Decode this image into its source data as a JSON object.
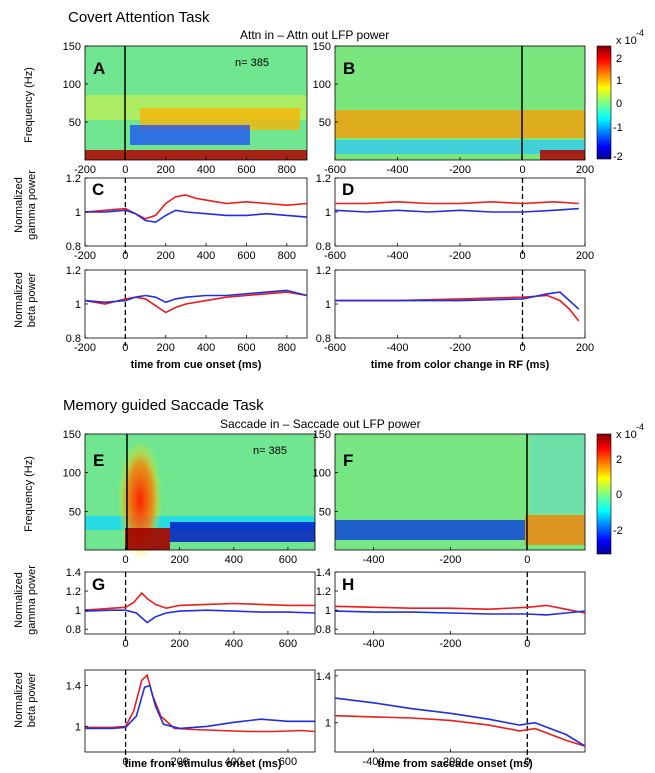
{
  "section1": {
    "title": "Covert Attention Task",
    "subtitle": "Attn in – Attn out LFP power",
    "n_label": "n= 385",
    "colorbar": {
      "label": "x 10",
      "exponent": "-4",
      "ticks": [
        "2",
        "1",
        "0",
        "-1",
        "-2"
      ]
    },
    "xlabel_left": "time from cue onset (ms)",
    "xlabel_right": "time from color change in RF (ms)",
    "ylabel_spec": "Frequency (Hz)",
    "ylabel_gamma": [
      "Normalized",
      "gamma power"
    ],
    "ylabel_beta": [
      "Normalized",
      "beta power"
    ]
  },
  "section2": {
    "title": "Memory guided Saccade Task",
    "subtitle": "Saccade in – Saccade out LFP power",
    "n_label": "n= 385",
    "colorbar": {
      "label": "x 10",
      "exponent": "-4",
      "ticks": [
        "2",
        "0",
        "-2"
      ]
    },
    "xlabel_left": "time from stimulus onset (ms)",
    "xlabel_right": "time from saccade onset (ms)",
    "ylabel_spec": "Frequency (Hz)",
    "ylabel_gamma": [
      "Normalized",
      "gamma power"
    ],
    "ylabel_beta": [
      "Normalized",
      "beta power"
    ]
  },
  "colors": {
    "red": "#ee1c1c",
    "blue": "#1f2fe0",
    "colormap": "jet"
  },
  "chart_data": [
    {
      "panel": "A",
      "type": "heatmap",
      "x_range": [
        -200,
        900
      ],
      "y_range": [
        0,
        150
      ],
      "xticks": [
        -200,
        0,
        200,
        400,
        600,
        800
      ],
      "yticks": [
        50,
        100,
        150
      ],
      "event_line_x": 0,
      "color_range": [
        -2,
        2
      ],
      "units": "x 10^-4"
    },
    {
      "panel": "B",
      "type": "heatmap",
      "x_range": [
        -600,
        200
      ],
      "y_range": [
        0,
        150
      ],
      "xticks": [
        -600,
        -400,
        -200,
        0,
        200
      ],
      "yticks": [
        50,
        100,
        150
      ],
      "event_line_x": 0,
      "color_range": [
        -2,
        2
      ],
      "units": "x 10^-4"
    },
    {
      "panel": "C",
      "type": "line",
      "xlim": [
        -200,
        900
      ],
      "ylim": [
        0.8,
        1.2
      ],
      "xticks": [
        -200,
        0,
        200,
        400,
        600,
        800
      ],
      "yticks": [
        0.8,
        1,
        1.2
      ],
      "event_line_x": 0,
      "series": [
        {
          "color": "red",
          "x": [
            -200,
            -100,
            0,
            50,
            100,
            150,
            200,
            250,
            300,
            350,
            400,
            450,
            500,
            600,
            700,
            800,
            900
          ],
          "values": [
            1.0,
            1.01,
            1.02,
            0.99,
            0.96,
            0.98,
            1.05,
            1.09,
            1.1,
            1.08,
            1.07,
            1.06,
            1.05,
            1.06,
            1.05,
            1.04,
            1.05
          ]
        },
        {
          "color": "blue",
          "x": [
            -200,
            -100,
            0,
            50,
            100,
            150,
            200,
            250,
            300,
            400,
            500,
            600,
            700,
            800,
            900
          ],
          "values": [
            1.0,
            1.0,
            1.01,
            0.99,
            0.95,
            0.94,
            0.98,
            1.01,
            1.0,
            0.99,
            0.98,
            0.98,
            0.99,
            0.98,
            0.97
          ]
        }
      ]
    },
    {
      "panel": "D",
      "type": "line",
      "xlim": [
        -600,
        200
      ],
      "ylim": [
        0.8,
        1.2
      ],
      "xticks": [
        -600,
        -400,
        -200,
        0,
        200
      ],
      "yticks": [
        0.8,
        1,
        1.2
      ],
      "event_line_x": 0,
      "series": [
        {
          "color": "red",
          "x": [
            -600,
            -500,
            -400,
            -300,
            -200,
            -100,
            0,
            100,
            180
          ],
          "values": [
            1.05,
            1.05,
            1.06,
            1.05,
            1.05,
            1.06,
            1.05,
            1.06,
            1.05
          ]
        },
        {
          "color": "blue",
          "x": [
            -600,
            -500,
            -400,
            -300,
            -200,
            -100,
            0,
            100,
            180
          ],
          "values": [
            1.01,
            1.0,
            1.01,
            1.0,
            1.01,
            1.0,
            1.0,
            1.01,
            1.02
          ]
        }
      ]
    },
    {
      "panel": "C-beta",
      "type": "line",
      "xlim": [
        -200,
        900
      ],
      "ylim": [
        0.8,
        1.2
      ],
      "xticks": [
        -200,
        0,
        200,
        400,
        600,
        800
      ],
      "yticks": [
        0.8,
        1,
        1.2
      ],
      "event_line_x": 0,
      "series": [
        {
          "color": "red",
          "x": [
            -200,
            -100,
            0,
            50,
            100,
            150,
            200,
            250,
            300,
            400,
            500,
            600,
            700,
            800,
            900
          ],
          "values": [
            1.02,
            1.0,
            1.03,
            1.04,
            1.03,
            0.99,
            0.95,
            0.98,
            1.0,
            1.02,
            1.04,
            1.05,
            1.06,
            1.07,
            1.05
          ]
        },
        {
          "color": "blue",
          "x": [
            -200,
            -100,
            0,
            50,
            100,
            150,
            200,
            250,
            300,
            400,
            500,
            600,
            700,
            800,
            900
          ],
          "values": [
            1.02,
            1.01,
            1.02,
            1.04,
            1.05,
            1.04,
            1.01,
            1.03,
            1.04,
            1.05,
            1.05,
            1.06,
            1.07,
            1.08,
            1.05
          ]
        }
      ]
    },
    {
      "panel": "D-beta",
      "type": "line",
      "xlim": [
        -600,
        200
      ],
      "ylim": [
        0.8,
        1.2
      ],
      "xticks": [
        -600,
        -400,
        -200,
        0,
        200
      ],
      "yticks": [
        0.8,
        1,
        1.2
      ],
      "event_line_x": 0,
      "series": [
        {
          "color": "red",
          "x": [
            -600,
            -400,
            -200,
            0,
            80,
            120,
            150,
            180
          ],
          "values": [
            1.02,
            1.02,
            1.03,
            1.04,
            1.05,
            1.02,
            0.97,
            0.9
          ]
        },
        {
          "color": "blue",
          "x": [
            -600,
            -400,
            -200,
            0,
            80,
            120,
            150,
            180
          ],
          "values": [
            1.02,
            1.02,
            1.02,
            1.03,
            1.06,
            1.07,
            1.02,
            0.97
          ]
        }
      ]
    },
    {
      "panel": "E",
      "type": "heatmap",
      "x_range": [
        -150,
        700
      ],
      "y_range": [
        0,
        150
      ],
      "xticks": [
        0,
        200,
        400,
        600
      ],
      "yticks": [
        50,
        100,
        150
      ],
      "event_line_x": 0,
      "color_range": [
        -2.5,
        2.5
      ],
      "units": "x 10^-4"
    },
    {
      "panel": "F",
      "type": "heatmap",
      "x_range": [
        -500,
        150
      ],
      "y_range": [
        0,
        150
      ],
      "xticks": [
        -400,
        -200,
        0
      ],
      "yticks": [
        50,
        100,
        150
      ],
      "event_line_x": 0,
      "color_range": [
        -2.5,
        2.5
      ],
      "units": "x 10^-4"
    },
    {
      "panel": "G",
      "type": "line",
      "xlim": [
        -150,
        700
      ],
      "ylim": [
        0.75,
        1.4
      ],
      "xticks": [
        0,
        200,
        400,
        600
      ],
      "yticks": [
        0.8,
        1,
        1.2,
        1.4
      ],
      "event_line_x": 0,
      "series": [
        {
          "color": "red",
          "x": [
            -150,
            -50,
            0,
            30,
            60,
            80,
            110,
            150,
            200,
            300,
            400,
            500,
            600,
            700
          ],
          "values": [
            1.0,
            1.02,
            1.03,
            1.08,
            1.18,
            1.12,
            1.06,
            1.02,
            1.05,
            1.06,
            1.07,
            1.06,
            1.05,
            1.05
          ]
        },
        {
          "color": "blue",
          "x": [
            -150,
            -50,
            0,
            40,
            80,
            110,
            150,
            200,
            300,
            400,
            500,
            600,
            700
          ],
          "values": [
            0.99,
            1.0,
            1.0,
            0.97,
            0.87,
            0.93,
            0.97,
            0.99,
            1.0,
            0.99,
            0.98,
            0.98,
            0.97
          ]
        }
      ]
    },
    {
      "panel": "H",
      "type": "line",
      "xlim": [
        -500,
        150
      ],
      "ylim": [
        0.75,
        1.4
      ],
      "xticks": [
        -400,
        -200,
        0
      ],
      "yticks": [
        0.8,
        1,
        1.2,
        1.4
      ],
      "event_line_x": 0,
      "series": [
        {
          "color": "red",
          "x": [
            -500,
            -400,
            -300,
            -200,
            -100,
            0,
            50,
            100,
            150
          ],
          "values": [
            1.04,
            1.03,
            1.02,
            1.02,
            1.01,
            1.03,
            1.05,
            1.01,
            0.97
          ]
        },
        {
          "color": "blue",
          "x": [
            -500,
            -400,
            -300,
            -200,
            -100,
            0,
            50,
            100,
            150
          ],
          "values": [
            0.99,
            0.98,
            0.98,
            0.97,
            0.96,
            0.96,
            0.95,
            0.97,
            0.99
          ]
        }
      ]
    },
    {
      "panel": "G-beta",
      "type": "line",
      "xlim": [
        -150,
        700
      ],
      "ylim": [
        0.75,
        1.55
      ],
      "xticks": [
        0,
        200,
        400,
        600
      ],
      "yticks": [
        1,
        1.4
      ],
      "event_line_x": 0,
      "series": [
        {
          "color": "red",
          "x": [
            -150,
            -50,
            0,
            30,
            60,
            80,
            100,
            130,
            180,
            250,
            350,
            450,
            550,
            650,
            700
          ],
          "values": [
            0.99,
            0.99,
            1.0,
            1.15,
            1.45,
            1.5,
            1.3,
            1.1,
            0.98,
            0.97,
            0.96,
            0.95,
            0.95,
            0.96,
            0.95
          ]
        },
        {
          "color": "blue",
          "x": [
            -150,
            -50,
            0,
            40,
            70,
            90,
            110,
            140,
            200,
            300,
            400,
            500,
            600,
            700
          ],
          "values": [
            0.98,
            0.98,
            0.99,
            1.1,
            1.38,
            1.4,
            1.2,
            1.02,
            0.98,
            1.0,
            1.04,
            1.07,
            1.05,
            1.05
          ]
        }
      ]
    },
    {
      "panel": "H-beta",
      "type": "line",
      "xlim": [
        -500,
        150
      ],
      "ylim": [
        0.75,
        1.45
      ],
      "xticks": [
        -400,
        -200,
        0
      ],
      "yticks": [
        1,
        1.4
      ],
      "event_line_x": 0,
      "series": [
        {
          "color": "red",
          "x": [
            -500,
            -400,
            -300,
            -200,
            -100,
            -20,
            20,
            60,
            100,
            150
          ],
          "values": [
            1.06,
            1.05,
            1.04,
            1.02,
            0.98,
            0.93,
            0.95,
            0.9,
            0.85,
            0.8
          ]
        },
        {
          "color": "blue",
          "x": [
            -500,
            -400,
            -300,
            -200,
            -100,
            -20,
            20,
            60,
            100,
            150
          ],
          "values": [
            1.21,
            1.17,
            1.12,
            1.08,
            1.03,
            0.98,
            1.0,
            0.95,
            0.9,
            0.8
          ]
        }
      ]
    }
  ]
}
